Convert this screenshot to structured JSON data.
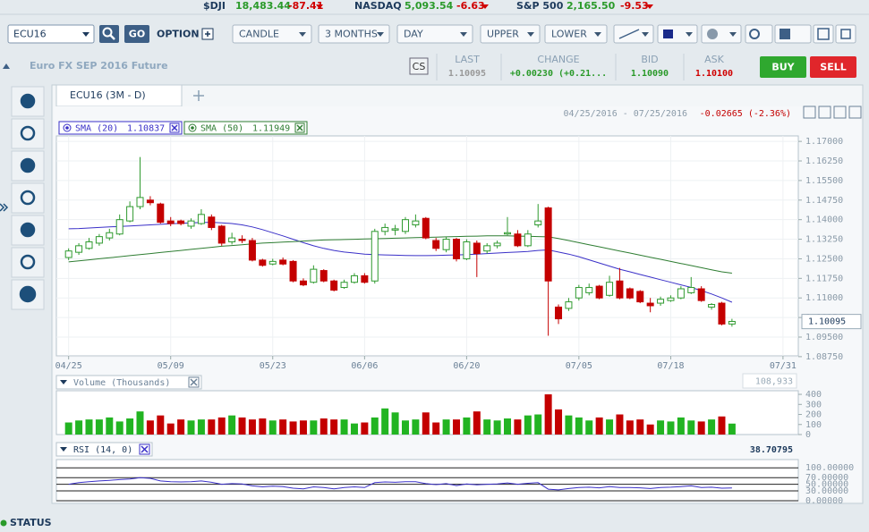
{
  "ticker": [
    {
      "symbol": "$DJI",
      "price": "18,483.44",
      "change": "-87.41"
    },
    {
      "symbol": "NASDAQ",
      "price": "5,093.54",
      "change": "-6.63"
    },
    {
      "symbol": "S&P 500",
      "price": "2,165.50",
      "change": "-9.53"
    }
  ],
  "toolbar": {
    "symbol": "ECU16",
    "go": "GO",
    "option": "OPTION",
    "dropdowns": [
      "CANDLE",
      "3 MONTHS",
      "DAY",
      "UPPER",
      "LOWER"
    ]
  },
  "instrument": "Euro FX SEP 2016 Future",
  "quote_icon": "CS",
  "quote": [
    {
      "label": "LAST",
      "value": "1.10095"
    },
    {
      "label": "CHANGE",
      "value": "+0.00230 (+0.21..."
    },
    {
      "label": "BID",
      "value": "1.10090"
    },
    {
      "label": "ASK",
      "value": "1.10100"
    }
  ],
  "buttons": [
    "BUY",
    "SELL"
  ],
  "tab": "ECU16 (3M - D)",
  "status": "STATUS",
  "chart_data": [
    {
      "type": "candlestick",
      "date_range": "04/25/2016 - 07/25/2016",
      "period_change": "-0.02665 (-2.36%)",
      "xlim": [
        -1.2,
        71.5
      ],
      "xticks": [
        {
          "value": 0,
          "label": "04/25"
        },
        {
          "value": 10,
          "label": "05/09"
        },
        {
          "value": 20,
          "label": "05/23"
        },
        {
          "value": 29,
          "label": "06/06"
        },
        {
          "value": 39,
          "label": "06/20"
        },
        {
          "value": 50,
          "label": "07/05"
        },
        {
          "value": 59,
          "label": "07/18"
        },
        {
          "value": 70,
          "label": "07/31"
        }
      ],
      "ylim": [
        1.0878,
        1.1721
      ],
      "yticks": [
        {
          "value": 1.17,
          "label": "1.17000"
        },
        {
          "value": 1.1625,
          "label": "1.16250"
        },
        {
          "value": 1.155,
          "label": "1.15500"
        },
        {
          "value": 1.1475,
          "label": "1.14750"
        },
        {
          "value": 1.14,
          "label": "1.14000"
        },
        {
          "value": 1.1325,
          "label": "1.13250"
        },
        {
          "value": 1.125,
          "label": "1.12500"
        },
        {
          "value": 1.1175,
          "label": "1.11750"
        },
        {
          "value": 1.11,
          "label": "1.11000"
        },
        {
          "value": 1.1025,
          "label": "1.10250"
        },
        {
          "value": 1.095,
          "label": "1.09500"
        },
        {
          "value": 1.0875,
          "label": "1.08750"
        }
      ],
      "price_tag": {
        "value": 1.10095,
        "label": "1.10095"
      },
      "up_color": "#2f9a2f",
      "down_color": "#c40000",
      "open": [
        1.1255,
        1.1275,
        1.129,
        1.131,
        1.133,
        1.1345,
        1.1395,
        1.145,
        1.1475,
        1.146,
        1.1395,
        1.1395,
        1.1375,
        1.1385,
        1.141,
        1.1375,
        1.1315,
        1.1325,
        1.132,
        1.1245,
        1.123,
        1.1245,
        1.124,
        1.1165,
        1.116,
        1.1205,
        1.1165,
        1.114,
        1.116,
        1.1185,
        1.1165,
        1.1355,
        1.136,
        1.1355,
        1.138,
        1.1405,
        1.132,
        1.1285,
        1.1325,
        1.125,
        1.131,
        1.128,
        1.13,
        1.1345,
        1.1345,
        1.13,
        1.138,
        1.1445,
        1.1065,
        1.106,
        1.11,
        1.112,
        1.1145,
        1.111,
        1.1165,
        1.1135,
        1.1125,
        1.108,
        1.108,
        1.109,
        1.11,
        1.112,
        1.1135,
        1.1065,
        1.108,
        1.1
      ],
      "high": [
        1.129,
        1.131,
        1.133,
        1.1345,
        1.1365,
        1.142,
        1.147,
        1.164,
        1.149,
        1.1465,
        1.141,
        1.14,
        1.1405,
        1.144,
        1.142,
        1.138,
        1.135,
        1.134,
        1.133,
        1.125,
        1.125,
        1.1255,
        1.1245,
        1.1175,
        1.1225,
        1.121,
        1.117,
        1.117,
        1.1195,
        1.1195,
        1.1365,
        1.1385,
        1.138,
        1.141,
        1.142,
        1.141,
        1.133,
        1.1335,
        1.133,
        1.1325,
        1.132,
        1.131,
        1.132,
        1.141,
        1.136,
        1.136,
        1.146,
        1.145,
        1.1075,
        1.11,
        1.115,
        1.1155,
        1.115,
        1.1185,
        1.1215,
        1.114,
        1.113,
        1.11,
        1.1105,
        1.111,
        1.1145,
        1.118,
        1.1145,
        1.108,
        1.1085,
        1.102
      ],
      "low": [
        1.1245,
        1.1265,
        1.1285,
        1.13,
        1.132,
        1.134,
        1.139,
        1.144,
        1.1455,
        1.1385,
        1.1375,
        1.1378,
        1.1365,
        1.138,
        1.136,
        1.13,
        1.1305,
        1.131,
        1.124,
        1.122,
        1.1225,
        1.1225,
        1.116,
        1.1145,
        1.1155,
        1.116,
        1.1125,
        1.1135,
        1.1155,
        1.1155,
        1.1155,
        1.134,
        1.134,
        1.1345,
        1.137,
        1.1325,
        1.128,
        1.1275,
        1.124,
        1.1245,
        1.118,
        1.127,
        1.129,
        1.134,
        1.1295,
        1.1295,
        1.137,
        1.0955,
        1.1,
        1.105,
        1.109,
        1.111,
        1.1095,
        1.1105,
        1.1095,
        1.1095,
        1.108,
        1.1045,
        1.107,
        1.1085,
        1.1095,
        1.1115,
        1.1085,
        1.1055,
        1.0995,
        1.099
      ],
      "close": [
        1.128,
        1.13,
        1.1315,
        1.1335,
        1.135,
        1.14,
        1.145,
        1.1485,
        1.1465,
        1.139,
        1.1385,
        1.1385,
        1.1395,
        1.142,
        1.137,
        1.131,
        1.133,
        1.132,
        1.1245,
        1.1225,
        1.124,
        1.123,
        1.1165,
        1.115,
        1.121,
        1.1165,
        1.113,
        1.116,
        1.1185,
        1.116,
        1.1355,
        1.137,
        1.1365,
        1.14,
        1.1395,
        1.133,
        1.129,
        1.1325,
        1.125,
        1.1315,
        1.127,
        1.13,
        1.131,
        1.135,
        1.13,
        1.1345,
        1.1395,
        1.1165,
        1.102,
        1.1085,
        1.114,
        1.114,
        1.11,
        1.116,
        1.11,
        1.11,
        1.1085,
        1.107,
        1.1095,
        1.11,
        1.1135,
        1.114,
        1.109,
        1.1075,
        1.1,
        1.101
      ],
      "series": [
        {
          "name": "SMA (20)",
          "legend_value": "1.10837",
          "color": "#3a30c8",
          "values": [
            1.1365,
            1.1366,
            1.1368,
            1.137,
            1.1372,
            1.1374,
            1.1376,
            1.1378,
            1.138,
            1.1382,
            1.1384,
            1.1386,
            1.1388,
            1.1389,
            1.139,
            1.1388,
            1.1385,
            1.138,
            1.1372,
            1.1362,
            1.135,
            1.1338,
            1.1325,
            1.1312,
            1.13,
            1.129,
            1.1282,
            1.1276,
            1.1272,
            1.1268,
            1.1266,
            1.1265,
            1.1264,
            1.1263,
            1.1262,
            1.1262,
            1.1263,
            1.1264,
            1.1265,
            1.1266,
            1.1268,
            1.127,
            1.1272,
            1.1274,
            1.1276,
            1.1278,
            1.1282,
            1.1284,
            1.1276,
            1.1268,
            1.1258,
            1.1246,
            1.1234,
            1.1222,
            1.121,
            1.12,
            1.119,
            1.118,
            1.117,
            1.116,
            1.115,
            1.114,
            1.1128,
            1.1115,
            1.11,
            1.10837
          ]
        },
        {
          "name": "SMA (50)",
          "legend_value": "1.11949",
          "color": "#2e7d32",
          "values": [
            1.1238,
            1.1242,
            1.1246,
            1.125,
            1.1254,
            1.1258,
            1.1262,
            1.1266,
            1.127,
            1.1274,
            1.1278,
            1.1282,
            1.1286,
            1.129,
            1.1294,
            1.1298,
            1.1301,
            1.1304,
            1.1307,
            1.131,
            1.1312,
            1.1314,
            1.1316,
            1.1318,
            1.132,
            1.1322,
            1.1323,
            1.1324,
            1.1325,
            1.1326,
            1.1327,
            1.1328,
            1.1329,
            1.133,
            1.1331,
            1.1332,
            1.1333,
            1.1334,
            1.1335,
            1.1336,
            1.1337,
            1.1338,
            1.1338,
            1.1338,
            1.1337,
            1.1336,
            1.1335,
            1.1334,
            1.1328,
            1.132,
            1.1312,
            1.1304,
            1.1296,
            1.1288,
            1.128,
            1.1272,
            1.1264,
            1.1256,
            1.1248,
            1.124,
            1.1232,
            1.1224,
            1.1216,
            1.1208,
            1.12,
            1.11949
          ]
        }
      ]
    },
    {
      "type": "bar",
      "title": "Volume (Thousands)",
      "current_label": "108,933",
      "ylim": [
        0,
        436
      ],
      "yticks": [
        0,
        100,
        200,
        300,
        400
      ],
      "values": [
        120,
        140,
        150,
        150,
        170,
        130,
        160,
        230,
        140,
        190,
        110,
        150,
        140,
        150,
        150,
        170,
        190,
        170,
        150,
        160,
        140,
        150,
        130,
        140,
        140,
        160,
        150,
        150,
        110,
        120,
        170,
        260,
        220,
        140,
        150,
        220,
        120,
        150,
        150,
        170,
        230,
        150,
        140,
        160,
        150,
        190,
        200,
        400,
        250,
        190,
        170,
        140,
        170,
        150,
        200,
        140,
        150,
        100,
        140,
        130,
        170,
        140,
        130,
        150,
        180,
        108.933
      ]
    },
    {
      "type": "line",
      "title": "RSI (14, 0)",
      "current_label": "38.70795",
      "color": "#3a30c8",
      "ylim": [
        0,
        125
      ],
      "yticks": [
        {
          "value": 100,
          "label": "100.00000"
        },
        {
          "value": 70,
          "label": "70.00000"
        },
        {
          "value": 50,
          "label": "50.00000"
        },
        {
          "value": 30,
          "label": "30.00000"
        },
        {
          "value": 0,
          "label": "0.00000"
        }
      ],
      "values": [
        50,
        55,
        58,
        60,
        62,
        64,
        66,
        70,
        68,
        60,
        58,
        57,
        58,
        60,
        56,
        50,
        52,
        51,
        45,
        42,
        44,
        43,
        38,
        36,
        42,
        40,
        36,
        40,
        42,
        40,
        55,
        57,
        56,
        58,
        58,
        52,
        49,
        52,
        46,
        51,
        48,
        50,
        51,
        54,
        50,
        53,
        55,
        35,
        33,
        37,
        40,
        41,
        39,
        43,
        40,
        40,
        39,
        37,
        40,
        41,
        43,
        45,
        40,
        41,
        38,
        38.70795
      ]
    }
  ]
}
